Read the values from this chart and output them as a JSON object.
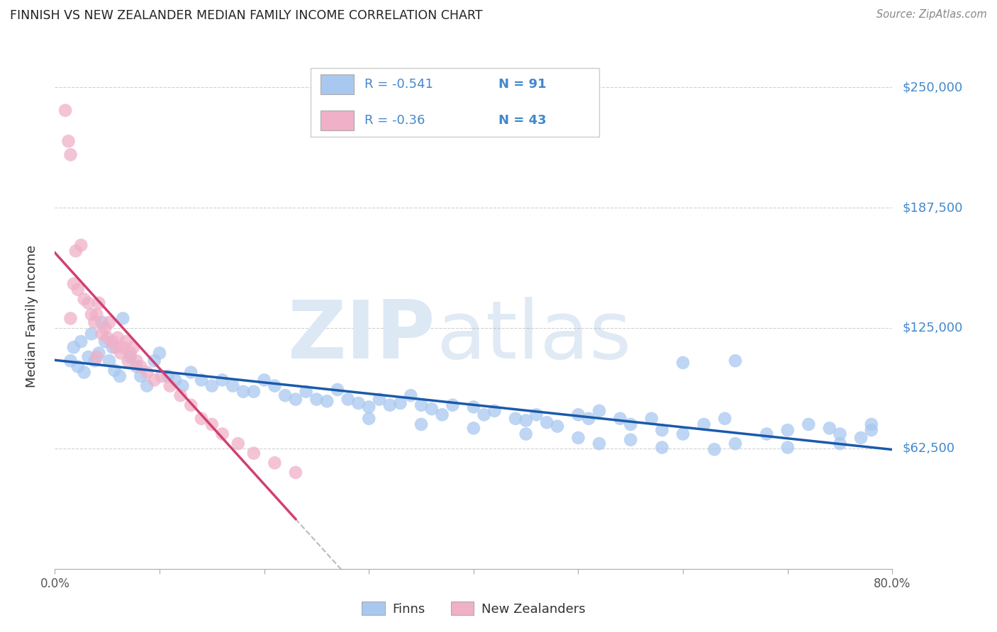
{
  "title": "FINNISH VS NEW ZEALANDER MEDIAN FAMILY INCOME CORRELATION CHART",
  "source": "Source: ZipAtlas.com",
  "ylabel": "Median Family Income",
  "y_tick_labels": [
    "$62,500",
    "$125,000",
    "$187,500",
    "$250,000"
  ],
  "y_tick_values": [
    62500,
    125000,
    187500,
    250000
  ],
  "ylim_max": 262500,
  "xlim_min": 0.0,
  "xlim_max": 0.8,
  "finn_R": -0.541,
  "finn_N": 91,
  "nz_R": -0.36,
  "nz_N": 43,
  "finn_color": "#a8c8f0",
  "nz_color": "#f0b0c8",
  "finn_line_color": "#1a5aaa",
  "nz_line_color": "#d04070",
  "watermark_zip_color": "#dde8f5",
  "watermark_atlas_color": "#6699cc",
  "background_color": "#ffffff",
  "grid_color": "#cccccc",
  "title_color": "#222222",
  "ytick_color": "#4488cc",
  "legend_text_color": "#4488cc",
  "legend_label_finn": "Finns",
  "legend_label_nz": "New Zealanders",
  "finn_scatter_x": [
    0.015,
    0.022,
    0.028,
    0.032,
    0.038,
    0.042,
    0.048,
    0.052,
    0.057,
    0.062,
    0.018,
    0.025,
    0.035,
    0.045,
    0.055,
    0.065,
    0.072,
    0.078,
    0.082,
    0.088,
    0.095,
    0.1,
    0.108,
    0.115,
    0.122,
    0.13,
    0.14,
    0.15,
    0.16,
    0.17,
    0.18,
    0.19,
    0.2,
    0.21,
    0.22,
    0.23,
    0.24,
    0.25,
    0.26,
    0.27,
    0.28,
    0.29,
    0.3,
    0.31,
    0.32,
    0.33,
    0.34,
    0.35,
    0.36,
    0.37,
    0.38,
    0.4,
    0.41,
    0.42,
    0.44,
    0.45,
    0.46,
    0.47,
    0.48,
    0.5,
    0.51,
    0.52,
    0.54,
    0.55,
    0.57,
    0.58,
    0.6,
    0.62,
    0.64,
    0.65,
    0.68,
    0.7,
    0.72,
    0.74,
    0.75,
    0.77,
    0.78,
    0.3,
    0.35,
    0.4,
    0.45,
    0.5,
    0.55,
    0.6,
    0.65,
    0.7,
    0.75,
    0.78,
    0.52,
    0.58,
    0.63
  ],
  "finn_scatter_y": [
    108000,
    105000,
    102000,
    110000,
    108000,
    112000,
    118000,
    108000,
    103000,
    100000,
    115000,
    118000,
    122000,
    128000,
    115000,
    130000,
    110000,
    105000,
    100000,
    95000,
    108000,
    112000,
    100000,
    98000,
    95000,
    102000,
    98000,
    95000,
    98000,
    95000,
    92000,
    92000,
    98000,
    95000,
    90000,
    88000,
    92000,
    88000,
    87000,
    93000,
    88000,
    86000,
    84000,
    88000,
    85000,
    86000,
    90000,
    85000,
    83000,
    80000,
    85000,
    84000,
    80000,
    82000,
    78000,
    77000,
    80000,
    76000,
    74000,
    80000,
    78000,
    82000,
    78000,
    75000,
    78000,
    72000,
    70000,
    75000,
    78000,
    108000,
    70000,
    72000,
    75000,
    73000,
    65000,
    68000,
    72000,
    78000,
    75000,
    73000,
    70000,
    68000,
    67000,
    107000,
    65000,
    63000,
    70000,
    75000,
    65000,
    63000,
    62000
  ],
  "nz_scatter_x": [
    0.01,
    0.013,
    0.015,
    0.018,
    0.02,
    0.022,
    0.025,
    0.028,
    0.032,
    0.035,
    0.038,
    0.04,
    0.042,
    0.045,
    0.048,
    0.05,
    0.052,
    0.055,
    0.058,
    0.06,
    0.063,
    0.065,
    0.068,
    0.07,
    0.072,
    0.075,
    0.078,
    0.082,
    0.088,
    0.095,
    0.102,
    0.11,
    0.12,
    0.13,
    0.14,
    0.15,
    0.16,
    0.175,
    0.19,
    0.21,
    0.23,
    0.015,
    0.04
  ],
  "nz_scatter_y": [
    238000,
    222000,
    215000,
    148000,
    165000,
    145000,
    168000,
    140000,
    138000,
    132000,
    128000,
    132000,
    138000,
    122000,
    125000,
    120000,
    128000,
    118000,
    115000,
    120000,
    112000,
    115000,
    118000,
    108000,
    112000,
    115000,
    108000,
    105000,
    102000,
    98000,
    100000,
    95000,
    90000,
    85000,
    78000,
    75000,
    70000,
    65000,
    60000,
    55000,
    50000,
    130000,
    110000
  ],
  "nz_line_x_solid_end": 0.23,
  "finn_line_x_start": 0.0,
  "finn_line_x_end": 0.8,
  "nz_line_x_dashed_end": 0.45
}
